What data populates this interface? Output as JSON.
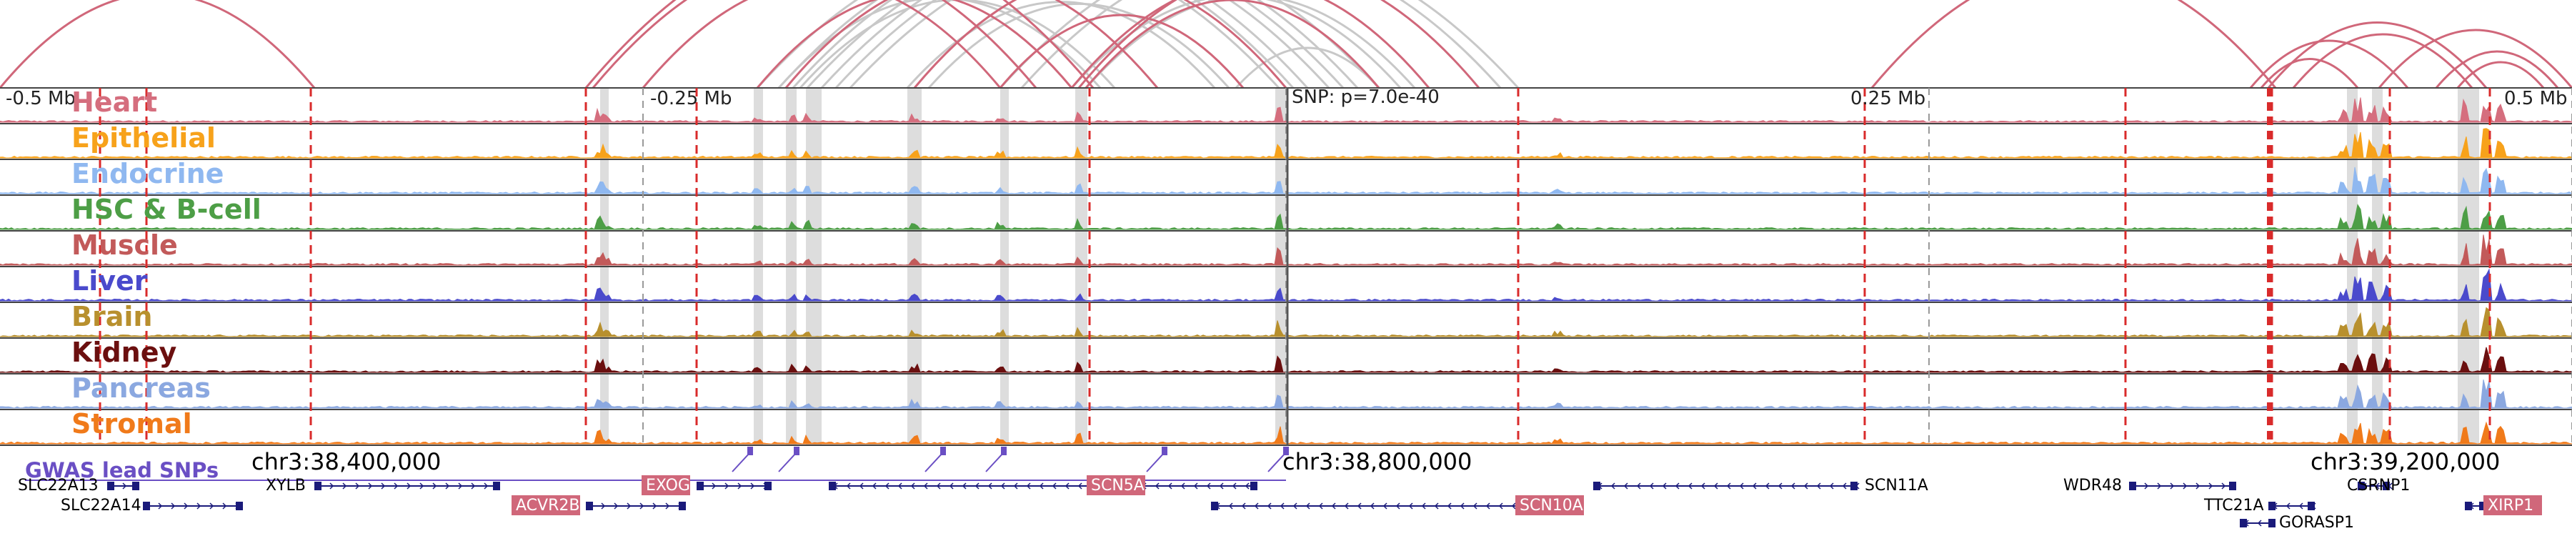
{
  "axis": {
    "ticks": [
      "-0.5 Mb",
      "-0.25 Mb",
      "0.25 Mb",
      "0.5 Mb"
    ],
    "snp_label": "SNP: p=7.0e-40"
  },
  "colors": {
    "loop_red": "#d0677a",
    "loop_gray": "#c8c8c8",
    "boundary_red": "#d92b2b",
    "highlight": "#dddddd",
    "gwas": "#6a4fc4",
    "gene": "#1a1a7a",
    "gene_highlight_bg": "#d0677a"
  },
  "tracks": [
    {
      "name": "Heart",
      "color": "#d56e7e"
    },
    {
      "name": "Epithelial",
      "color": "#f7a21b"
    },
    {
      "name": "Endocrine",
      "color": "#8fb8f0"
    },
    {
      "name": "HSC & B-cell",
      "color": "#4d9e46"
    },
    {
      "name": "Muscle",
      "color": "#c25a5a"
    },
    {
      "name": "Liver",
      "color": "#4a4acc"
    },
    {
      "name": "Brain",
      "color": "#b8902e"
    },
    {
      "name": "Kidney",
      "color": "#6b0f0f"
    },
    {
      "name": "Pancreas",
      "color": "#8ba8e0"
    },
    {
      "name": "Stromal",
      "color": "#f07a1a"
    }
  ],
  "coordinates": [
    "chr3:38,400,000",
    "chr3:38,800,000",
    "chr3:39,200,000"
  ],
  "gwas_label": "GWAS lead SNPs",
  "genes": [
    {
      "name": "SLC22A13",
      "highlight": false
    },
    {
      "name": "SLC22A14",
      "highlight": false
    },
    {
      "name": "XYLB",
      "highlight": false
    },
    {
      "name": "ACVR2B",
      "highlight": true
    },
    {
      "name": "EXOG",
      "highlight": true
    },
    {
      "name": "SCN5A",
      "highlight": true
    },
    {
      "name": "SCN10A",
      "highlight": true
    },
    {
      "name": "SCN11A",
      "highlight": false
    },
    {
      "name": "WDR48",
      "highlight": false
    },
    {
      "name": "TTC21A",
      "highlight": false
    },
    {
      "name": "GORASP1",
      "highlight": false
    },
    {
      "name": "CSRNP1",
      "highlight": false
    },
    {
      "name": "XIRP1",
      "highlight": true
    }
  ]
}
